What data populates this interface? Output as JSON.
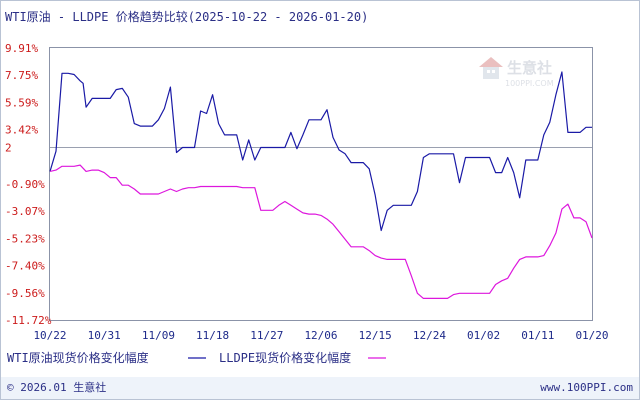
{
  "chart_data": {
    "type": "line",
    "title": "WTI原油 - LLDPE 价格趋势比较(2025-10-22 - 2026-01-20)",
    "y_ticks": [
      "9.91%",
      "7.75%",
      "5.59%",
      "3.42%",
      "2",
      "-0.90%",
      "-3.07%",
      "-5.23%",
      "-7.40%",
      "-9.56%",
      "-11.72%"
    ],
    "y_tick_values": [
      9.91,
      7.75,
      5.59,
      3.42,
      2,
      -0.9,
      -3.07,
      -5.23,
      -7.4,
      -9.56,
      -11.72
    ],
    "ylim": [
      -11.72,
      9.91
    ],
    "baseline": 2,
    "x_ticks": [
      "10/22",
      "10/31",
      "11/09",
      "11/18",
      "11/27",
      "12/06",
      "12/15",
      "12/24",
      "01/02",
      "01/11",
      "01/20"
    ],
    "x_tick_days": [
      0,
      9,
      18,
      27,
      36,
      45,
      54,
      63,
      72,
      81,
      90
    ],
    "x_range_days": [
      0,
      90
    ],
    "grid": false,
    "series": [
      {
        "name": "WTI原油现货价格变化幅度",
        "color": "#1a1aa6",
        "points": [
          [
            0,
            0.1
          ],
          [
            1,
            1.7
          ],
          [
            2,
            7.9
          ],
          [
            3,
            7.9
          ],
          [
            4,
            7.8
          ],
          [
            5,
            7.3
          ],
          [
            5.5,
            7.1
          ],
          [
            6,
            5.2
          ],
          [
            7,
            5.9
          ],
          [
            8,
            5.9
          ],
          [
            9,
            5.9
          ],
          [
            10,
            5.9
          ],
          [
            11,
            6.6
          ],
          [
            12,
            6.7
          ],
          [
            13,
            6.0
          ],
          [
            14,
            3.9
          ],
          [
            15,
            3.7
          ],
          [
            16,
            3.7
          ],
          [
            17,
            3.7
          ],
          [
            18,
            4.2
          ],
          [
            19,
            5.1
          ],
          [
            20,
            6.8
          ],
          [
            21,
            1.6
          ],
          [
            22,
            2.0
          ],
          [
            23,
            2.0
          ],
          [
            24,
            2.0
          ],
          [
            25,
            4.9
          ],
          [
            26,
            4.7
          ],
          [
            27,
            6.2
          ],
          [
            28,
            3.9
          ],
          [
            29,
            3.0
          ],
          [
            30,
            3.0
          ],
          [
            31,
            3.0
          ],
          [
            32,
            1.0
          ],
          [
            33,
            2.6
          ],
          [
            34,
            1.0
          ],
          [
            35,
            2.0
          ],
          [
            36,
            2.0
          ],
          [
            37,
            2.0
          ],
          [
            38,
            2.0
          ],
          [
            39,
            2.0
          ],
          [
            40,
            3.2
          ],
          [
            41,
            1.9
          ],
          [
            42,
            3.0
          ],
          [
            43,
            4.2
          ],
          [
            44,
            4.2
          ],
          [
            45,
            4.2
          ],
          [
            46,
            5.0
          ],
          [
            47,
            2.8
          ],
          [
            48,
            1.8
          ],
          [
            49,
            1.5
          ],
          [
            50,
            0.8
          ],
          [
            51,
            0.8
          ],
          [
            52,
            0.8
          ],
          [
            53,
            0.3
          ],
          [
            54,
            -1.8
          ],
          [
            55,
            -4.6
          ],
          [
            56,
            -3.0
          ],
          [
            57,
            -2.6
          ],
          [
            58,
            -2.6
          ],
          [
            59,
            -2.6
          ],
          [
            60,
            -2.6
          ],
          [
            61,
            -1.5
          ],
          [
            62,
            1.2
          ],
          [
            63,
            1.5
          ],
          [
            64,
            1.5
          ],
          [
            65,
            1.5
          ],
          [
            66,
            1.5
          ],
          [
            67,
            1.5
          ],
          [
            68,
            -0.8
          ],
          [
            69,
            1.2
          ],
          [
            70,
            1.2
          ],
          [
            71,
            1.2
          ],
          [
            72,
            1.2
          ],
          [
            73,
            1.2
          ],
          [
            74,
            0.0
          ],
          [
            75,
            0.0
          ],
          [
            76,
            1.2
          ],
          [
            77,
            0.0
          ],
          [
            78,
            -2.0
          ],
          [
            79,
            1.0
          ],
          [
            80,
            1.0
          ],
          [
            81,
            1.0
          ],
          [
            82,
            3.0
          ],
          [
            83,
            4.0
          ],
          [
            84,
            6.2
          ],
          [
            85,
            8.0
          ],
          [
            86,
            3.2
          ],
          [
            87,
            3.2
          ],
          [
            88,
            3.2
          ],
          [
            89,
            3.6
          ],
          [
            90,
            3.6
          ]
        ]
      },
      {
        "name": "LLDPE现货价格变化幅度",
        "color": "#dd17dd",
        "points": [
          [
            0,
            0.1
          ],
          [
            1,
            0.2
          ],
          [
            2,
            0.5
          ],
          [
            3,
            0.5
          ],
          [
            4,
            0.5
          ],
          [
            5,
            0.6
          ],
          [
            6,
            0.1
          ],
          [
            7,
            0.2
          ],
          [
            8,
            0.2
          ],
          [
            9,
            0.0
          ],
          [
            10,
            -0.4
          ],
          [
            11,
            -0.4
          ],
          [
            12,
            -1.0
          ],
          [
            13,
            -1.0
          ],
          [
            14,
            -1.3
          ],
          [
            15,
            -1.7
          ],
          [
            16,
            -1.7
          ],
          [
            17,
            -1.7
          ],
          [
            18,
            -1.7
          ],
          [
            19,
            -1.5
          ],
          [
            20,
            -1.3
          ],
          [
            21,
            -1.5
          ],
          [
            22,
            -1.3
          ],
          [
            23,
            -1.2
          ],
          [
            24,
            -1.2
          ],
          [
            25,
            -1.1
          ],
          [
            26,
            -1.1
          ],
          [
            27,
            -1.1
          ],
          [
            28,
            -1.1
          ],
          [
            29,
            -1.1
          ],
          [
            30,
            -1.1
          ],
          [
            31,
            -1.1
          ],
          [
            32,
            -1.2
          ],
          [
            33,
            -1.2
          ],
          [
            34,
            -1.2
          ],
          [
            35,
            -3.0
          ],
          [
            36,
            -3.0
          ],
          [
            37,
            -3.0
          ],
          [
            38,
            -2.6
          ],
          [
            39,
            -2.3
          ],
          [
            40,
            -2.6
          ],
          [
            41,
            -2.9
          ],
          [
            42,
            -3.2
          ],
          [
            43,
            -3.3
          ],
          [
            44,
            -3.3
          ],
          [
            45,
            -3.4
          ],
          [
            46,
            -3.7
          ],
          [
            47,
            -4.1
          ],
          [
            48,
            -4.7
          ],
          [
            49,
            -5.3
          ],
          [
            50,
            -5.9
          ],
          [
            51,
            -5.9
          ],
          [
            52,
            -5.9
          ],
          [
            53,
            -6.2
          ],
          [
            54,
            -6.6
          ],
          [
            55,
            -6.8
          ],
          [
            56,
            -6.9
          ],
          [
            57,
            -6.9
          ],
          [
            58,
            -6.9
          ],
          [
            59,
            -6.9
          ],
          [
            60,
            -8.2
          ],
          [
            61,
            -9.6
          ],
          [
            62,
            -10.0
          ],
          [
            63,
            -10.0
          ],
          [
            64,
            -10.0
          ],
          [
            65,
            -10.0
          ],
          [
            66,
            -10.0
          ],
          [
            67,
            -9.7
          ],
          [
            68,
            -9.6
          ],
          [
            69,
            -9.6
          ],
          [
            70,
            -9.6
          ],
          [
            71,
            -9.6
          ],
          [
            72,
            -9.6
          ],
          [
            73,
            -9.6
          ],
          [
            74,
            -8.9
          ],
          [
            75,
            -8.6
          ],
          [
            76,
            -8.4
          ],
          [
            77,
            -7.6
          ],
          [
            78,
            -6.9
          ],
          [
            79,
            -6.7
          ],
          [
            80,
            -6.7
          ],
          [
            81,
            -6.7
          ],
          [
            82,
            -6.6
          ],
          [
            83,
            -5.8
          ],
          [
            84,
            -4.8
          ],
          [
            85,
            -2.9
          ],
          [
            86,
            -2.5
          ],
          [
            87,
            -3.6
          ],
          [
            88,
            -3.6
          ],
          [
            89,
            -3.9
          ],
          [
            90,
            -5.2
          ]
        ]
      }
    ]
  },
  "legend": [
    {
      "label": "WTI原油现货价格变化幅度",
      "color": "#1a1aa6"
    },
    {
      "label": "LLDPE现货价格变化幅度",
      "color": "#dd17dd"
    }
  ],
  "footer": {
    "copyright": "© 2026.01 生意社",
    "website": "www.100PPI.com"
  },
  "watermark": {
    "name": "生意社",
    "domain": "100PPI.COM"
  },
  "colors": {
    "axis_text_y": "#cc1b1b",
    "axis_text_x": "#1e2a8a",
    "title": "#2b2f86",
    "baseline": "#9aa0b0",
    "plot_border": "#8b93a8",
    "footer_bg": "#eef3fa"
  }
}
